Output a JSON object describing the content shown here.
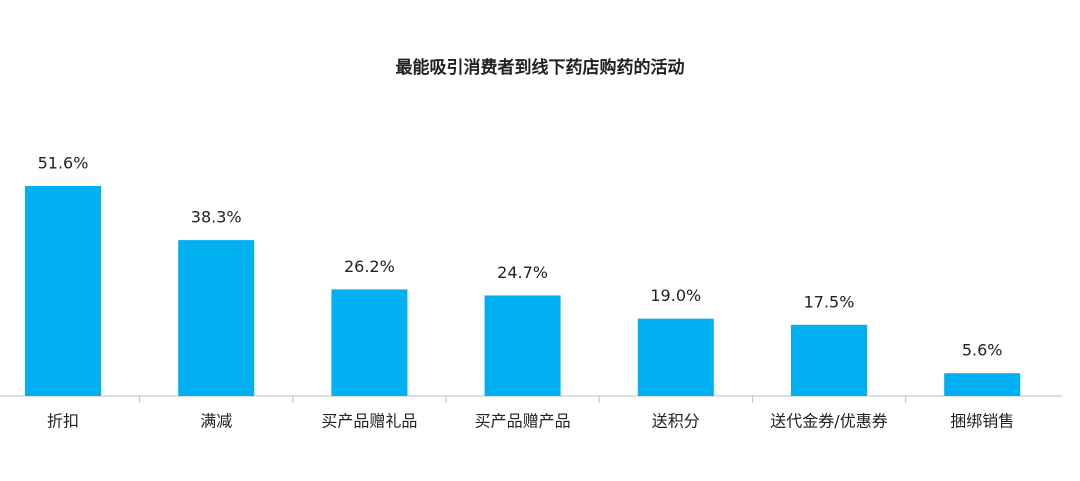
{
  "chart_data": {
    "type": "bar",
    "title": "最能吸引消费者到线下药店购药的活动",
    "categories": [
      "折扣",
      "满减",
      "买产品赠礼品",
      "买产品赠产品",
      "送积分",
      "送代金券/优惠券",
      "捆绑销售"
    ],
    "values": [
      51.6,
      38.3,
      26.2,
      24.7,
      19.0,
      17.5,
      5.6
    ],
    "value_labels": [
      "51.6%",
      "38.3%",
      "26.2%",
      "24.7%",
      "19.0%",
      "17.5%",
      "5.6%"
    ],
    "color": "#00b0f0"
  }
}
